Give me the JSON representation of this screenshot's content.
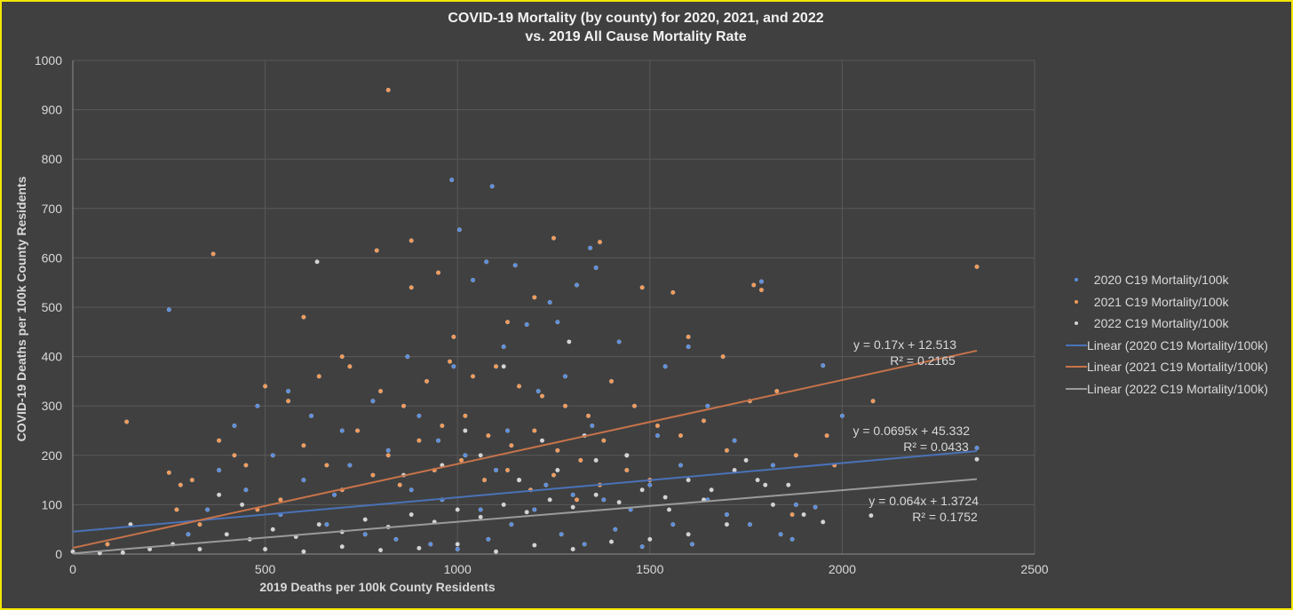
{
  "chart_data": {
    "type": "scatter",
    "title": "COVID-19 Mortality (by county) for 2020, 2021, and 2022",
    "subtitle": "vs. 2019 All Cause Mortality Rate",
    "xlabel": "2019 Deaths per 100k County Residents",
    "ylabel": "COVID-19 Deaths per 100k County Residents",
    "xlim": [
      0,
      2500
    ],
    "ylim": [
      0,
      1000
    ],
    "xticks": [
      "0",
      "500",
      "1000",
      "1500",
      "2000",
      "2500"
    ],
    "yticks": [
      "0",
      "100",
      "200",
      "300",
      "400",
      "500",
      "600",
      "700",
      "800",
      "900",
      "1000"
    ],
    "grid": true,
    "legend_position": "right",
    "series": [
      {
        "name": "2020 C19 Mortality/100k",
        "color": "#5b8fe0",
        "points": [
          [
            985,
            758
          ],
          [
            1090,
            745
          ],
          [
            1005,
            657
          ],
          [
            250,
            495
          ],
          [
            1075,
            592
          ],
          [
            1345,
            620
          ],
          [
            1790,
            552
          ],
          [
            1950,
            382
          ],
          [
            2000,
            280
          ],
          [
            2350,
            215
          ],
          [
            1310,
            545
          ],
          [
            1150,
            585
          ],
          [
            1040,
            555
          ],
          [
            870,
            400
          ],
          [
            1600,
            420
          ],
          [
            560,
            330
          ],
          [
            300,
            40
          ],
          [
            1870,
            30
          ],
          [
            1360,
            580
          ],
          [
            1240,
            510
          ],
          [
            1180,
            465
          ],
          [
            1420,
            430
          ],
          [
            1540,
            380
          ],
          [
            1650,
            300
          ],
          [
            1720,
            230
          ],
          [
            1820,
            180
          ],
          [
            1880,
            100
          ],
          [
            1930,
            95
          ],
          [
            480,
            300
          ],
          [
            420,
            260
          ],
          [
            380,
            170
          ],
          [
            620,
            280
          ],
          [
            700,
            250
          ],
          [
            780,
            310
          ],
          [
            900,
            280
          ],
          [
            950,
            230
          ],
          [
            1020,
            200
          ],
          [
            1100,
            170
          ],
          [
            1160,
            150
          ],
          [
            1230,
            140
          ],
          [
            1300,
            120
          ],
          [
            1380,
            110
          ],
          [
            1450,
            90
          ],
          [
            1500,
            140
          ],
          [
            1560,
            60
          ],
          [
            1610,
            20
          ],
          [
            540,
            80
          ],
          [
            660,
            60
          ],
          [
            760,
            40
          ],
          [
            840,
            30
          ],
          [
            930,
            20
          ],
          [
            1000,
            10
          ],
          [
            1080,
            30
          ],
          [
            1140,
            60
          ],
          [
            1200,
            90
          ],
          [
            1270,
            40
          ],
          [
            1330,
            20
          ],
          [
            1410,
            50
          ],
          [
            1480,
            15
          ],
          [
            600,
            150
          ],
          [
            720,
            180
          ],
          [
            820,
            210
          ],
          [
            880,
            130
          ],
          [
            960,
            110
          ],
          [
            1060,
            90
          ],
          [
            1130,
            250
          ],
          [
            1210,
            330
          ],
          [
            1280,
            360
          ],
          [
            1350,
            260
          ],
          [
            1440,
            200
          ],
          [
            1520,
            240
          ],
          [
            1580,
            180
          ],
          [
            350,
            90
          ],
          [
            450,
            130
          ],
          [
            520,
            200
          ],
          [
            680,
            120
          ],
          [
            990,
            380
          ],
          [
            1120,
            420
          ],
          [
            1260,
            470
          ],
          [
            1650,
            110
          ],
          [
            1700,
            80
          ],
          [
            1760,
            60
          ],
          [
            1840,
            40
          ]
        ]
      },
      {
        "name": "2021 C19 Mortality/100k",
        "color": "#f59a57",
        "points": [
          [
            820,
            940
          ],
          [
            365,
            608
          ],
          [
            790,
            615
          ],
          [
            880,
            635
          ],
          [
            1250,
            640
          ],
          [
            1370,
            632
          ],
          [
            2350,
            582
          ],
          [
            600,
            480
          ],
          [
            140,
            268
          ],
          [
            1770,
            545
          ],
          [
            1790,
            535
          ],
          [
            1560,
            530
          ],
          [
            1480,
            540
          ],
          [
            880,
            540
          ],
          [
            950,
            570
          ],
          [
            1200,
            520
          ],
          [
            2080,
            310
          ],
          [
            420,
            200
          ],
          [
            700,
            400
          ],
          [
            250,
            165
          ],
          [
            280,
            140
          ],
          [
            310,
            150
          ],
          [
            380,
            230
          ],
          [
            450,
            180
          ],
          [
            500,
            340
          ],
          [
            560,
            310
          ],
          [
            640,
            360
          ],
          [
            720,
            380
          ],
          [
            800,
            330
          ],
          [
            860,
            300
          ],
          [
            920,
            350
          ],
          [
            980,
            390
          ],
          [
            1040,
            360
          ],
          [
            1100,
            380
          ],
          [
            1160,
            340
          ],
          [
            1220,
            320
          ],
          [
            1280,
            300
          ],
          [
            1340,
            280
          ],
          [
            1400,
            350
          ],
          [
            1460,
            300
          ],
          [
            1520,
            260
          ],
          [
            1580,
            240
          ],
          [
            1640,
            270
          ],
          [
            1700,
            210
          ],
          [
            1760,
            310
          ],
          [
            1830,
            330
          ],
          [
            1880,
            200
          ],
          [
            1960,
            240
          ],
          [
            1980,
            180
          ],
          [
            600,
            220
          ],
          [
            660,
            180
          ],
          [
            740,
            250
          ],
          [
            820,
            200
          ],
          [
            900,
            230
          ],
          [
            960,
            260
          ],
          [
            1020,
            280
          ],
          [
            1080,
            240
          ],
          [
            1140,
            220
          ],
          [
            1200,
            250
          ],
          [
            1260,
            210
          ],
          [
            1320,
            190
          ],
          [
            1380,
            230
          ],
          [
            1440,
            170
          ],
          [
            1500,
            150
          ],
          [
            700,
            130
          ],
          [
            780,
            160
          ],
          [
            850,
            140
          ],
          [
            940,
            170
          ],
          [
            1010,
            190
          ],
          [
            1070,
            150
          ],
          [
            1130,
            170
          ],
          [
            1190,
            130
          ],
          [
            1250,
            160
          ],
          [
            1310,
            110
          ],
          [
            1370,
            140
          ],
          [
            540,
            110
          ],
          [
            480,
            90
          ],
          [
            330,
            60
          ],
          [
            270,
            90
          ],
          [
            90,
            20
          ],
          [
            1690,
            400
          ],
          [
            1600,
            440
          ],
          [
            1130,
            470
          ],
          [
            990,
            440
          ],
          [
            1870,
            80
          ]
        ]
      },
      {
        "name": "2022 C19 Mortality/100k",
        "color": "#d4d4d4",
        "points": [
          [
            635,
            592
          ],
          [
            1120,
            380
          ],
          [
            1290,
            430
          ],
          [
            2075,
            78
          ],
          [
            2350,
            192
          ],
          [
            1950,
            65
          ],
          [
            1860,
            140
          ],
          [
            150,
            60
          ],
          [
            200,
            10
          ],
          [
            0,
            5
          ],
          [
            70,
            2
          ],
          [
            130,
            3
          ],
          [
            260,
            20
          ],
          [
            330,
            10
          ],
          [
            400,
            40
          ],
          [
            460,
            30
          ],
          [
            520,
            50
          ],
          [
            580,
            35
          ],
          [
            640,
            60
          ],
          [
            700,
            45
          ],
          [
            760,
            70
          ],
          [
            820,
            55
          ],
          [
            880,
            80
          ],
          [
            940,
            65
          ],
          [
            1000,
            90
          ],
          [
            1060,
            75
          ],
          [
            1120,
            100
          ],
          [
            1180,
            85
          ],
          [
            1240,
            110
          ],
          [
            1300,
            95
          ],
          [
            1360,
            120
          ],
          [
            1420,
            105
          ],
          [
            1480,
            130
          ],
          [
            1540,
            115
          ],
          [
            1600,
            150
          ],
          [
            1660,
            130
          ],
          [
            1720,
            170
          ],
          [
            1780,
            150
          ],
          [
            1820,
            100
          ],
          [
            1900,
            80
          ],
          [
            500,
            10
          ],
          [
            600,
            5
          ],
          [
            700,
            15
          ],
          [
            800,
            8
          ],
          [
            900,
            12
          ],
          [
            1000,
            20
          ],
          [
            1100,
            5
          ],
          [
            1200,
            18
          ],
          [
            1300,
            10
          ],
          [
            1400,
            25
          ],
          [
            1500,
            30
          ],
          [
            1600,
            40
          ],
          [
            1700,
            60
          ],
          [
            860,
            160
          ],
          [
            960,
            180
          ],
          [
            1060,
            200
          ],
          [
            1160,
            150
          ],
          [
            1260,
            170
          ],
          [
            1360,
            190
          ],
          [
            1440,
            200
          ],
          [
            1550,
            90
          ],
          [
            1640,
            110
          ],
          [
            1750,
            190
          ],
          [
            1800,
            140
          ],
          [
            380,
            120
          ],
          [
            440,
            100
          ],
          [
            1020,
            250
          ],
          [
            1220,
            230
          ],
          [
            1330,
            240
          ]
        ]
      }
    ],
    "trendlines": [
      {
        "name": "Linear (2020 C19 Mortality/100k)",
        "color": "#4a72b8",
        "slope": 0.0695,
        "intercept": 45.332,
        "equation": "y = 0.0695x + 45.332",
        "r2": "R² = 0.0433",
        "x_end": 2350
      },
      {
        "name": "Linear (2021 C19 Mortality/100k)",
        "color": "#c7734a",
        "slope": 0.17,
        "intercept": 12.513,
        "equation": "y = 0.17x + 12.513",
        "r2": "R² = 0.2165",
        "x_end": 2350
      },
      {
        "name": "Linear (2022 C19 Mortality/100k)",
        "color": "#9a9a9a",
        "slope": 0.064,
        "intercept": 1.3724,
        "equation": "y = 0.064x + 1.3724",
        "r2": "R² = 0.1752",
        "x_end": 2350
      }
    ]
  }
}
